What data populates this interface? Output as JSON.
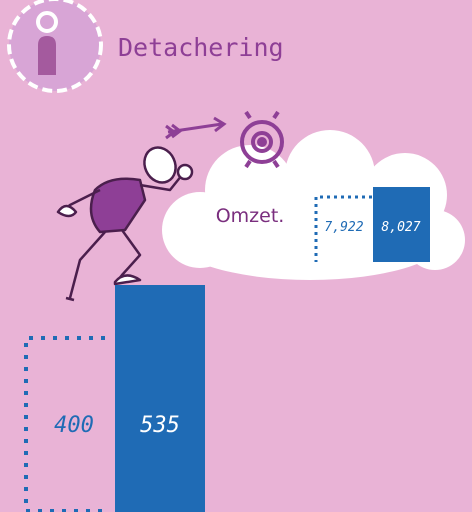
{
  "header": {
    "title": "Detachering"
  },
  "main": {
    "previous": "400",
    "current": "535"
  },
  "cloud": {
    "label": "Omzet.",
    "previous": "7,922",
    "current": "8,027"
  }
}
